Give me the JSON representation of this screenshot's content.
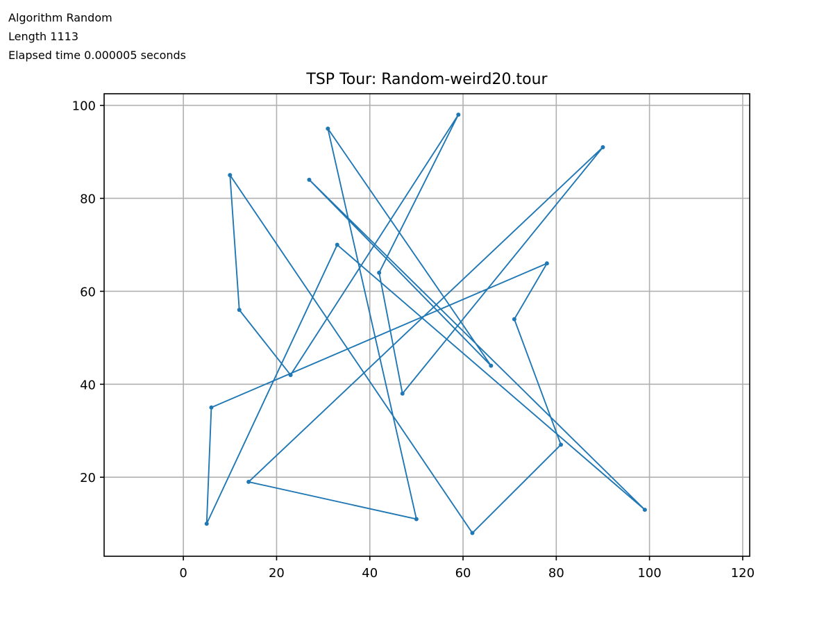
{
  "info": {
    "algorithm": "Algorithm Random",
    "length": "Length 1113",
    "elapsed": "Elapsed time 0.000005 seconds"
  },
  "chart_data": {
    "type": "line",
    "title": "TSP Tour: Random-weird20.tour",
    "xlabel": "",
    "ylabel": "",
    "xlim": [
      -17,
      121.5
    ],
    "ylim": [
      3,
      102.5
    ],
    "xticks": [
      0,
      20,
      40,
      60,
      80,
      100,
      120
    ],
    "yticks": [
      20,
      40,
      60,
      80,
      100
    ],
    "grid": true,
    "color": "#1f77b4",
    "series": [
      {
        "name": "",
        "points": [
          [
            10,
            85
          ],
          [
            62,
            8
          ],
          [
            81,
            27
          ],
          [
            71,
            54
          ],
          [
            78,
            66
          ],
          [
            6,
            35
          ],
          [
            5,
            10
          ],
          [
            33,
            70
          ],
          [
            99,
            13
          ],
          [
            27,
            84
          ],
          [
            66,
            44
          ],
          [
            31,
            95
          ],
          [
            50,
            11
          ],
          [
            14,
            19
          ],
          [
            90,
            91
          ],
          [
            47,
            38
          ],
          [
            42,
            64
          ],
          [
            59,
            98
          ],
          [
            23,
            42
          ],
          [
            12,
            56
          ],
          [
            10,
            85
          ]
        ]
      }
    ]
  }
}
